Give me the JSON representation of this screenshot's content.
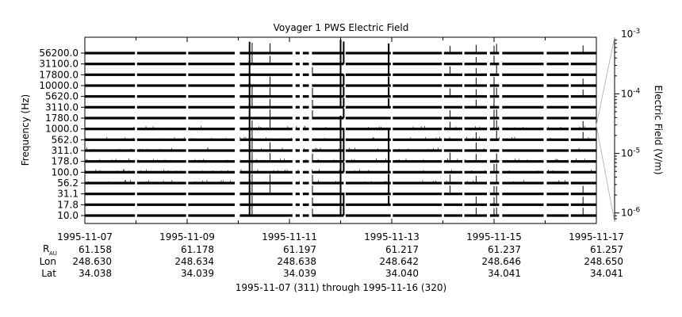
{
  "chart_data": {
    "type": "line",
    "title": "Voyager 1 PWS Electric Field",
    "ylabel": "Frequency (Hz)",
    "y2label": "Electric Field (V/m)",
    "channels": [
      "10.0",
      "17.8",
      "31.1",
      "56.2",
      "100.0",
      "178.0",
      "311.0",
      "562.0",
      "1000.0",
      "1780.0",
      "3110.0",
      "5620.0",
      "10000.0",
      "17800.0",
      "31100.0",
      "56200.0"
    ],
    "y2ticks": [
      "10^-6",
      "10^-5",
      "10^-4",
      "10^-3"
    ],
    "y2range_exp": [
      -6.15,
      -3.05
    ],
    "xrange_days": [
      0,
      10
    ],
    "xticks": [
      {
        "day": 0,
        "date": "1995-11-07",
        "r": "61.158",
        "lon": "248.630",
        "lat": "34.038"
      },
      {
        "day": 2,
        "date": "1995-11-09",
        "r": "61.178",
        "lon": "248.634",
        "lat": "34.039"
      },
      {
        "day": 4,
        "date": "1995-11-11",
        "r": "61.197",
        "lon": "248.638",
        "lat": "34.039"
      },
      {
        "day": 6,
        "date": "1995-11-13",
        "r": "61.217",
        "lon": "248.642",
        "lat": "34.040"
      },
      {
        "day": 8,
        "date": "1995-11-15",
        "r": "61.237",
        "lon": "248.646",
        "lat": "34.041"
      },
      {
        "day": 10,
        "date": "1995-11-17",
        "r": "61.257",
        "lon": "248.650",
        "lat": "34.041"
      }
    ],
    "row_labels": {
      "r": "R",
      "r_sub": "AU",
      "lon": "Lon",
      "lat": "Lat"
    },
    "footer": "1995-11-07 (311) through 1995-11-16 (320)",
    "data_gaps_days": [
      [
        0.98,
        1.02
      ],
      [
        1.98,
        2.02
      ],
      [
        2.93,
        3.03
      ],
      [
        4.06,
        4.12
      ],
      [
        4.2,
        4.26
      ],
      [
        4.38,
        4.44
      ],
      [
        5.06,
        5.1
      ],
      [
        5.98,
        6.02
      ],
      [
        6.98,
        7.02
      ],
      [
        7.38,
        7.42
      ],
      [
        7.86,
        7.92
      ],
      [
        8.1,
        8.16
      ],
      [
        8.97,
        9.03
      ],
      [
        9.46,
        9.5
      ]
    ],
    "events_days": [
      {
        "day": 3.22,
        "strength": 1.0
      },
      {
        "day": 3.27,
        "strength": 0.7
      },
      {
        "day": 3.62,
        "strength": 0.6
      },
      {
        "day": 4.45,
        "strength": 0.45
      },
      {
        "day": 5.0,
        "strength": 1.0
      },
      {
        "day": 5.06,
        "strength": 0.8
      },
      {
        "day": 5.94,
        "strength": 0.75
      },
      {
        "day": 7.14,
        "strength": 0.45
      },
      {
        "day": 7.65,
        "strength": 0.4
      },
      {
        "day": 8.0,
        "strength": 0.5
      },
      {
        "day": 8.05,
        "strength": 0.55
      },
      {
        "day": 9.74,
        "strength": 0.4
      }
    ]
  }
}
